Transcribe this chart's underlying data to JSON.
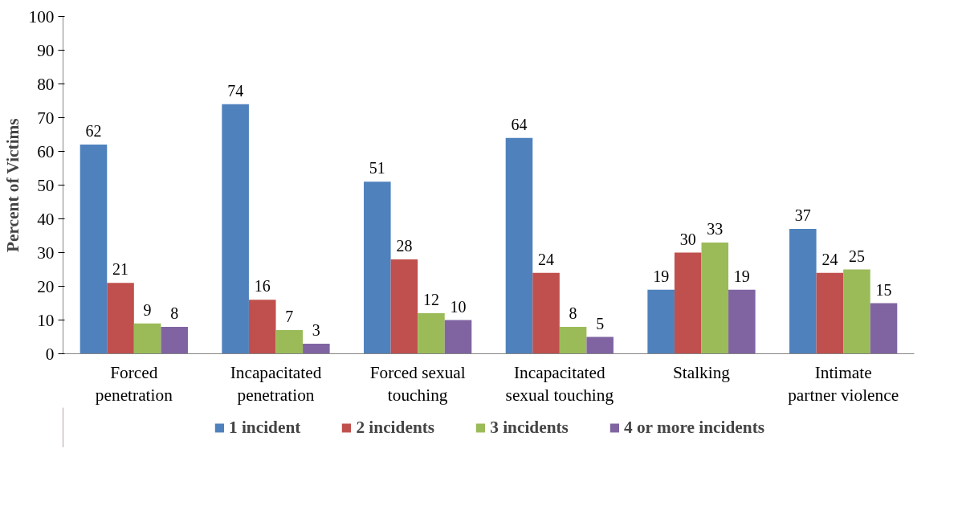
{
  "chart_data": {
    "type": "bar",
    "ylabel": "Percent of Victims",
    "categories": [
      "Forced\npenetration",
      "Incapacitated\npenetration",
      "Forced sexual\ntouching",
      "Incapacitated\nsexual touching",
      "Stalking",
      "Intimate\npartner violence"
    ],
    "series": [
      {
        "name": "1 incident",
        "color": "#4f81bd",
        "values": [
          62,
          74,
          51,
          64,
          19,
          37
        ]
      },
      {
        "name": "2 incidents",
        "color": "#c0504d",
        "values": [
          21,
          16,
          28,
          24,
          30,
          24
        ]
      },
      {
        "name": "3 incidents",
        "color": "#9bbb59",
        "values": [
          9,
          7,
          12,
          8,
          33,
          25
        ]
      },
      {
        "name": "4 or more incidents",
        "color": "#8064a2",
        "values": [
          8,
          3,
          10,
          5,
          19,
          15
        ]
      }
    ],
    "ylim": [
      0,
      100
    ],
    "yticks": [
      0,
      10,
      20,
      30,
      40,
      50,
      60,
      70,
      80,
      90,
      100
    ],
    "data_labels": true,
    "grid": false,
    "legend": "bottom"
  }
}
